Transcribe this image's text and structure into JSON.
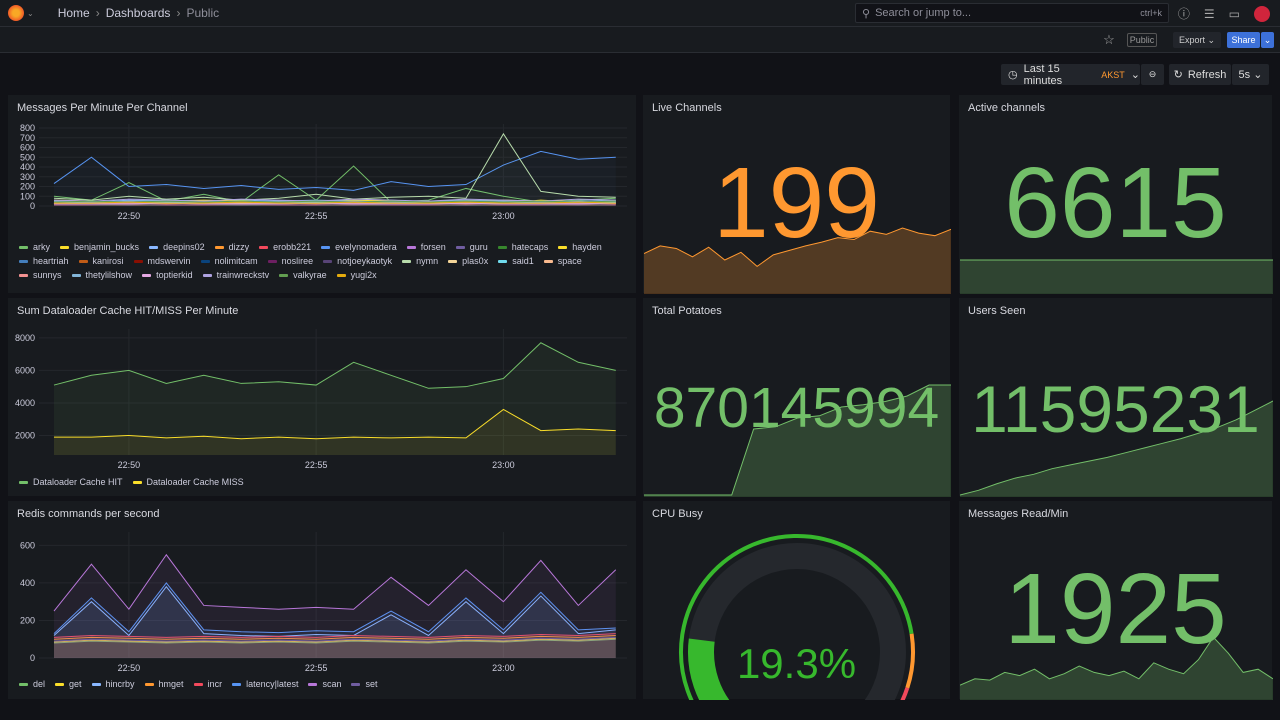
{
  "topbar": {
    "breadcrumb": [
      "Home",
      "Dashboards",
      "Public"
    ],
    "search_placeholder": "Search or jump to...",
    "search_shortcut": "ctrl+k"
  },
  "toolbar": {
    "public_badge": "Public",
    "export_label": "Export",
    "share_label": "Share",
    "time_range": "Last 15 minutes",
    "timezone": "AKST",
    "refresh_label": "Refresh",
    "refresh_interval": "5s"
  },
  "colors": {
    "green": "#73bf69",
    "orange": "#ff9830",
    "blue": "#3d71d9",
    "bg": "#111217",
    "panel": "#181b1f"
  },
  "panels": {
    "messages": {
      "title": "Messages Per Minute Per Channel"
    },
    "cache": {
      "title": "Sum Dataloader Cache HIT/MISS Per Minute"
    },
    "redis": {
      "title": "Redis commands per second"
    },
    "live": {
      "title": "Live Channels",
      "value": "199",
      "color": "#ff9830",
      "spark": [
        60,
        72,
        68,
        55,
        70,
        50,
        62,
        40,
        58,
        65,
        72,
        78,
        85,
        82,
        95,
        90,
        100,
        92,
        88,
        98
      ]
    },
    "active": {
      "title": "Active channels",
      "value": "6615",
      "color": "#73bf69",
      "spark": [
        50,
        50,
        50,
        50,
        50,
        50,
        50,
        50,
        50,
        50
      ]
    },
    "potatoes": {
      "title": "Total Potatoes",
      "value": "870145994",
      "color": "#73bf69",
      "spark": [
        0,
        0,
        0,
        0,
        0,
        60,
        62,
        70,
        72,
        80,
        82,
        85,
        90,
        100,
        100
      ]
    },
    "users": {
      "title": "Users Seen",
      "value": "11595231",
      "color": "#73bf69",
      "spark": [
        0,
        5,
        12,
        18,
        22,
        28,
        32,
        36,
        40,
        45,
        50,
        55,
        60,
        66,
        72,
        80,
        90,
        100
      ]
    },
    "cpu": {
      "title": "CPU Busy",
      "value": "19.3%",
      "percent": 19.3
    },
    "read": {
      "title": "Messages Read/Min",
      "value": "1925",
      "color": "#73bf69",
      "spark": [
        20,
        30,
        28,
        40,
        35,
        45,
        30,
        38,
        50,
        40,
        35,
        42,
        30,
        55,
        45,
        38,
        60,
        95,
        70,
        40,
        45,
        30
      ]
    }
  },
  "chart_data": [
    {
      "type": "line",
      "title": "Messages Per Minute Per Channel",
      "x": [
        "22:48",
        "22:49",
        "22:50",
        "22:51",
        "22:52",
        "22:53",
        "22:54",
        "22:55",
        "22:56",
        "22:57",
        "22:58",
        "22:59",
        "23:00",
        "23:01",
        "23:02",
        "23:03"
      ],
      "xticks": [
        "22:50",
        "22:55",
        "23:00"
      ],
      "yticks": [
        0,
        100,
        200,
        300,
        400,
        500,
        600,
        700,
        800
      ],
      "ylim": [
        0,
        800
      ],
      "series": [
        {
          "name": "arky",
          "color": "#73bf69",
          "values": [
            100,
            60,
            240,
            50,
            120,
            40,
            320,
            60,
            410,
            40,
            60,
            180,
            100,
            40,
            60,
            80
          ]
        },
        {
          "name": "benjamin_bucks",
          "color": "#fade2a",
          "values": [
            30,
            20,
            40,
            30,
            20,
            30,
            40,
            30,
            20,
            30,
            40,
            30,
            30,
            60,
            40,
            30
          ]
        },
        {
          "name": "deepins02",
          "color": "#8ab8ff",
          "values": [
            50,
            40,
            60,
            50,
            40,
            60,
            50,
            40,
            50,
            60,
            40,
            50,
            60,
            50,
            40,
            50
          ]
        },
        {
          "name": "dizzy",
          "color": "#ff9830",
          "values": [
            20,
            30,
            20,
            30,
            20,
            30,
            20,
            30,
            20,
            30,
            20,
            30,
            20,
            30,
            20,
            30
          ]
        },
        {
          "name": "erobb221",
          "color": "#f2495c",
          "values": [
            30,
            20,
            30,
            20,
            30,
            20,
            30,
            20,
            30,
            20,
            30,
            20,
            30,
            20,
            30,
            20
          ]
        },
        {
          "name": "evelynomadera",
          "color": "#5794f2",
          "values": [
            230,
            500,
            200,
            220,
            180,
            210,
            170,
            190,
            160,
            250,
            200,
            220,
            420,
            560,
            480,
            500
          ]
        },
        {
          "name": "forsen",
          "color": "#b877d9",
          "values": [
            40,
            30,
            40,
            50,
            40,
            30,
            40,
            50,
            40,
            30,
            40,
            50,
            40,
            30,
            40,
            50
          ]
        },
        {
          "name": "guru",
          "color": "#705da0",
          "values": [
            20,
            20,
            30,
            20,
            20,
            30,
            20,
            20,
            30,
            20,
            20,
            30,
            20,
            20,
            30,
            20
          ]
        },
        {
          "name": "hatecaps",
          "color": "#37872d",
          "values": [
            40,
            50,
            40,
            30,
            40,
            50,
            40,
            30,
            40,
            50,
            40,
            30,
            40,
            50,
            40,
            30
          ]
        },
        {
          "name": "hayden",
          "color": "#fade2a",
          "values": [
            60,
            50,
            40,
            50,
            60,
            50,
            40,
            50,
            60,
            50,
            40,
            50,
            60,
            50,
            40,
            50
          ]
        },
        {
          "name": "heartriah",
          "color": "#447ebc",
          "values": [
            30,
            40,
            30,
            40,
            30,
            40,
            30,
            40,
            30,
            40,
            30,
            40,
            30,
            40,
            30,
            40
          ]
        },
        {
          "name": "kanirosi",
          "color": "#c15c17",
          "values": [
            20,
            30,
            20,
            30,
            20,
            30,
            20,
            30,
            20,
            30,
            20,
            30,
            20,
            30,
            20,
            30
          ]
        },
        {
          "name": "mdswervin",
          "color": "#890f02",
          "values": [
            10,
            20,
            10,
            20,
            10,
            20,
            10,
            20,
            10,
            20,
            10,
            20,
            10,
            20,
            10,
            20
          ]
        },
        {
          "name": "nolimitcam",
          "color": "#0a437c",
          "values": [
            20,
            10,
            20,
            10,
            20,
            10,
            20,
            10,
            20,
            10,
            20,
            10,
            20,
            10,
            20,
            10
          ]
        },
        {
          "name": "nosliree",
          "color": "#6d1f62",
          "values": [
            10,
            10,
            20,
            10,
            10,
            20,
            10,
            10,
            20,
            10,
            10,
            20,
            10,
            10,
            20,
            10
          ]
        },
        {
          "name": "notjoeykaotyk",
          "color": "#584477",
          "values": [
            20,
            20,
            10,
            20,
            20,
            10,
            20,
            20,
            10,
            20,
            20,
            10,
            20,
            20,
            10,
            20
          ]
        },
        {
          "name": "nymn",
          "color": "#b7dbab",
          "values": [
            80,
            60,
            100,
            70,
            90,
            60,
            80,
            120,
            70,
            90,
            100,
            80,
            740,
            150,
            100,
            90
          ]
        },
        {
          "name": "plas0x",
          "color": "#f4d598",
          "values": [
            40,
            30,
            40,
            30,
            40,
            30,
            40,
            30,
            40,
            30,
            40,
            30,
            40,
            30,
            40,
            30
          ]
        },
        {
          "name": "said1",
          "color": "#70dbed",
          "values": [
            30,
            40,
            30,
            40,
            30,
            40,
            30,
            40,
            30,
            40,
            30,
            40,
            30,
            40,
            30,
            40
          ]
        },
        {
          "name": "space",
          "color": "#f9ba8f",
          "values": [
            20,
            30,
            20,
            30,
            20,
            30,
            20,
            30,
            20,
            30,
            20,
            30,
            20,
            30,
            20,
            30
          ]
        },
        {
          "name": "sunnys",
          "color": "#f29191",
          "values": [
            30,
            20,
            30,
            20,
            30,
            20,
            30,
            20,
            30,
            20,
            30,
            20,
            30,
            20,
            30,
            20
          ]
        },
        {
          "name": "thetylilshow",
          "color": "#82b5d8",
          "values": [
            50,
            40,
            50,
            60,
            50,
            40,
            50,
            60,
            50,
            40,
            50,
            60,
            50,
            40,
            50,
            60
          ]
        },
        {
          "name": "toptierkid",
          "color": "#e5a8e2",
          "values": [
            20,
            20,
            20,
            30,
            20,
            20,
            20,
            30,
            20,
            20,
            20,
            30,
            20,
            20,
            20,
            30
          ]
        },
        {
          "name": "trainwreckstv",
          "color": "#aea2e0",
          "values": [
            60,
            50,
            70,
            60,
            50,
            70,
            60,
            50,
            70,
            60,
            50,
            70,
            60,
            50,
            70,
            60
          ]
        },
        {
          "name": "valkyrae",
          "color": "#629e51",
          "values": [
            40,
            50,
            40,
            50,
            40,
            50,
            40,
            50,
            40,
            50,
            40,
            50,
            40,
            50,
            40,
            50
          ]
        },
        {
          "name": "yugi2x",
          "color": "#e5ac0e",
          "values": [
            30,
            30,
            40,
            30,
            30,
            40,
            30,
            30,
            40,
            30,
            30,
            40,
            30,
            30,
            40,
            30
          ]
        }
      ]
    },
    {
      "type": "area",
      "title": "Sum Dataloader Cache HIT/MISS Per Minute",
      "x": [
        "22:48",
        "22:49",
        "22:50",
        "22:51",
        "22:52",
        "22:53",
        "22:54",
        "22:55",
        "22:56",
        "22:57",
        "22:58",
        "22:59",
        "23:00",
        "23:01",
        "23:02",
        "23:03"
      ],
      "xticks": [
        "22:50",
        "22:55",
        "23:00"
      ],
      "yticks": [
        2000,
        4000,
        6000,
        8000
      ],
      "ylim": [
        800,
        8300
      ],
      "series": [
        {
          "name": "Dataloader Cache HIT",
          "color": "#73bf69",
          "values": [
            5100,
            5700,
            6000,
            5200,
            5700,
            5200,
            5300,
            5100,
            6500,
            5700,
            4900,
            5000,
            5500,
            7700,
            6500,
            6000
          ]
        },
        {
          "name": "Dataloader Cache MISS",
          "color": "#fade2a",
          "values": [
            1900,
            1900,
            2000,
            1850,
            1950,
            1800,
            1900,
            1800,
            1900,
            1850,
            1900,
            1850,
            3600,
            2300,
            2400,
            2300
          ]
        }
      ]
    },
    {
      "type": "line",
      "title": "Redis commands per second",
      "x": [
        "22:48",
        "22:49",
        "22:50",
        "22:51",
        "22:52",
        "22:53",
        "22:54",
        "22:55",
        "22:56",
        "22:57",
        "22:58",
        "22:59",
        "23:00",
        "23:01",
        "23:02",
        "23:03"
      ],
      "xticks": [
        "22:50",
        "22:55",
        "23:00"
      ],
      "yticks": [
        0,
        200,
        400,
        600
      ],
      "ylim": [
        0,
        650
      ],
      "series": [
        {
          "name": "del",
          "color": "#73bf69",
          "values": [
            80,
            90,
            85,
            80,
            85,
            80,
            85,
            80,
            90,
            85,
            80,
            90,
            85,
            95,
            90,
            100
          ]
        },
        {
          "name": "get",
          "color": "#fade2a",
          "values": [
            85,
            95,
            90,
            85,
            90,
            85,
            90,
            85,
            95,
            90,
            85,
            95,
            90,
            100,
            95,
            105
          ]
        },
        {
          "name": "hincrby",
          "color": "#8ab8ff",
          "values": [
            120,
            300,
            120,
            380,
            130,
            120,
            115,
            125,
            120,
            230,
            120,
            300,
            130,
            330,
            130,
            150
          ]
        },
        {
          "name": "hmget",
          "color": "#ff9830",
          "values": [
            100,
            110,
            105,
            100,
            105,
            100,
            105,
            100,
            110,
            105,
            100,
            110,
            105,
            115,
            110,
            120
          ]
        },
        {
          "name": "incr",
          "color": "#f2495c",
          "values": [
            110,
            120,
            115,
            110,
            115,
            110,
            115,
            110,
            120,
            115,
            110,
            120,
            115,
            125,
            120,
            130
          ]
        },
        {
          "name": "latency|latest",
          "color": "#5794f2",
          "values": [
            130,
            320,
            140,
            400,
            150,
            140,
            135,
            145,
            140,
            250,
            140,
            320,
            150,
            350,
            150,
            160
          ]
        },
        {
          "name": "scan",
          "color": "#b877d9",
          "values": [
            250,
            500,
            260,
            550,
            280,
            270,
            260,
            270,
            260,
            430,
            280,
            470,
            300,
            520,
            280,
            470
          ]
        },
        {
          "name": "set",
          "color": "#705da0",
          "values": [
            90,
            100,
            95,
            90,
            95,
            90,
            95,
            90,
            100,
            95,
            90,
            100,
            95,
            105,
            100,
            110
          ]
        }
      ]
    }
  ]
}
